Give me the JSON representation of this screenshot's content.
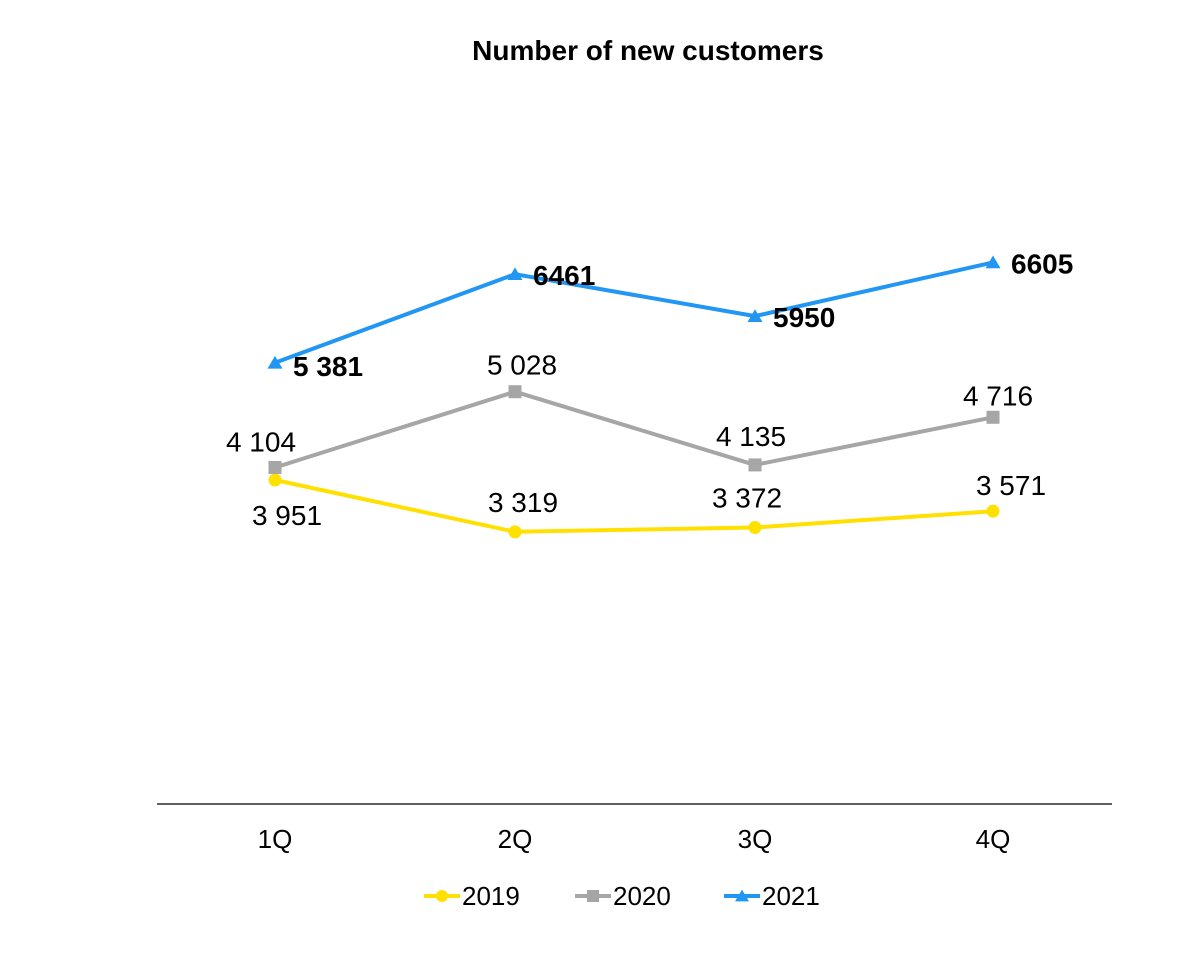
{
  "chart_data": {
    "type": "line",
    "title": "Number of new customers",
    "xlabel": "",
    "ylabel": "",
    "categories": [
      "1Q",
      "2Q",
      "3Q",
      "4Q"
    ],
    "ylim": [
      0,
      8000
    ],
    "grid": false,
    "legend_position": "bottom",
    "series": [
      {
        "name": "2019",
        "values": [
          3951,
          3319,
          3372,
          3571
        ],
        "labels": [
          "3 951",
          "3 319",
          "3 372",
          "3 571"
        ],
        "color": "#FFE000",
        "marker": "circle",
        "label_bold": false
      },
      {
        "name": "2020",
        "values": [
          4104,
          5028,
          4135,
          4716
        ],
        "labels": [
          "4 104",
          "5 028",
          "4 135",
          "4 716"
        ],
        "color": "#A6A6A6",
        "marker": "square",
        "label_bold": false
      },
      {
        "name": "2021",
        "values": [
          5381,
          6461,
          5950,
          6605
        ],
        "labels": [
          "5 381",
          "6461",
          "5950",
          "6605"
        ],
        "color": "#2196F3",
        "marker": "triangle",
        "label_bold": true
      }
    ]
  }
}
